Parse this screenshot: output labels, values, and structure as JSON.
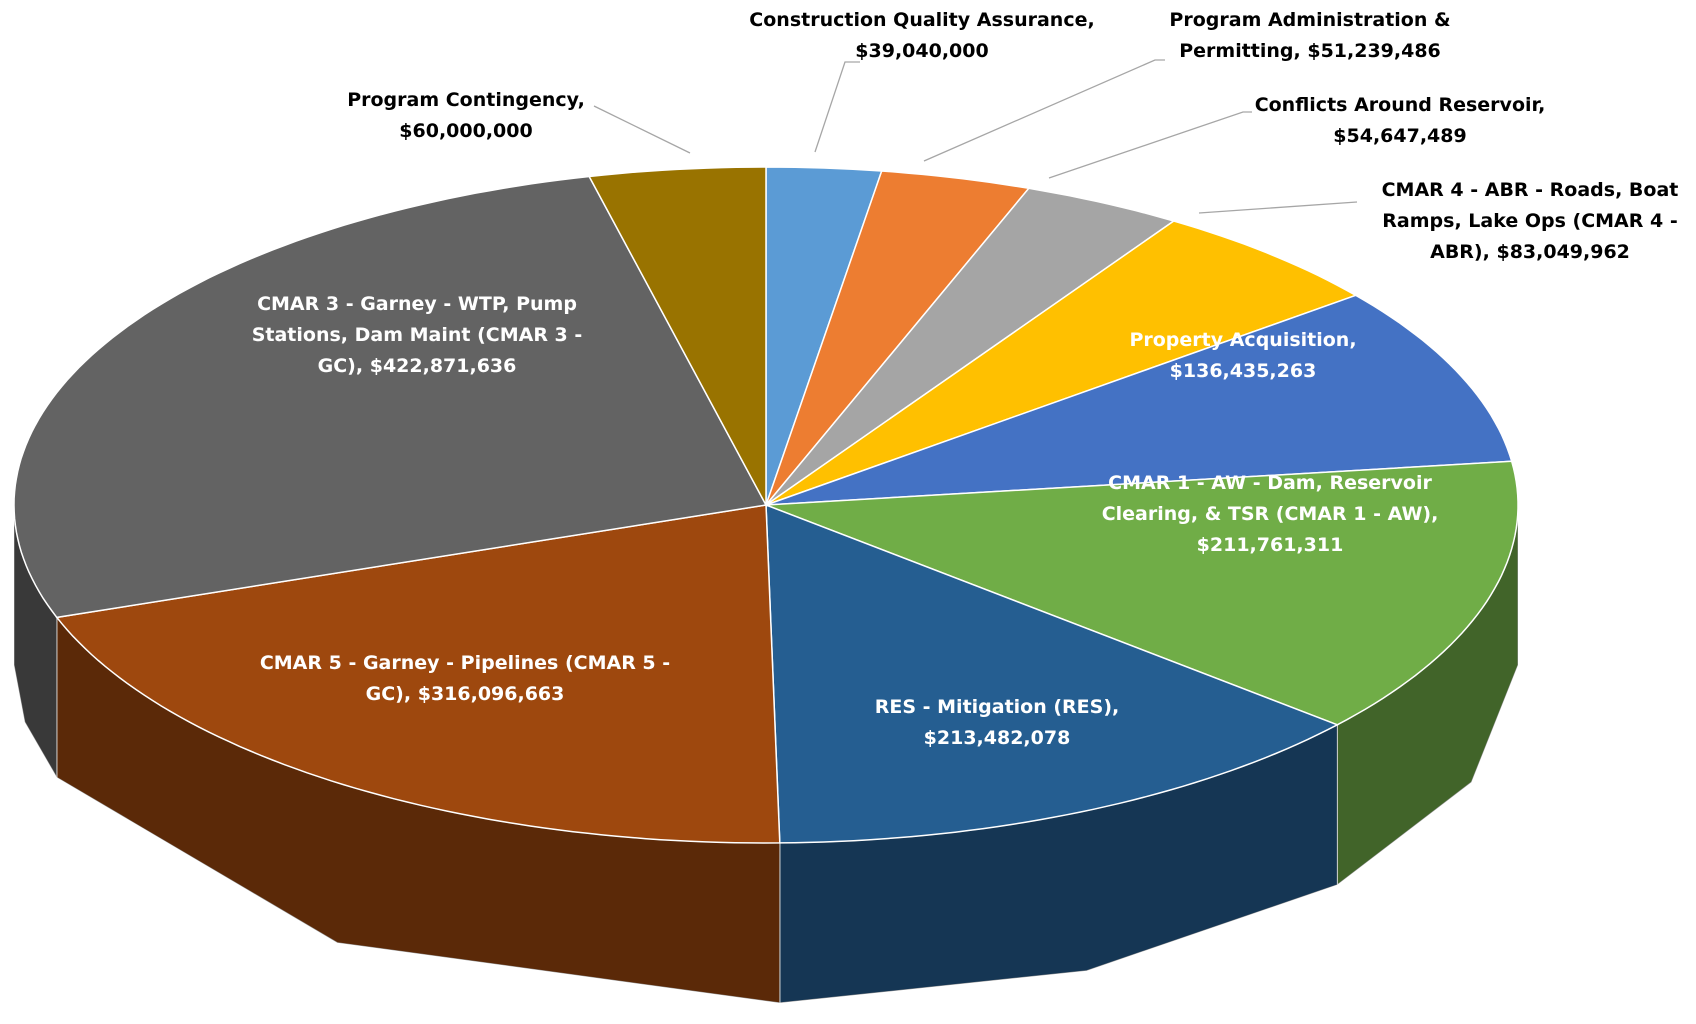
{
  "chart_data": {
    "type": "pie3d",
    "categories": [
      "Construction Quality Assurance",
      "Program Administration & Permitting",
      "Conflicts Around Reservoir",
      "CMAR 4 - ABR - Roads, Boat Ramps, Lake Ops (CMAR 4 - ABR)",
      "Property Acquisition",
      "CMAR 1 - AW - Dam, Reservoir Clearing, & TSR (CMAR 1 - AW)",
      "RES - Mitigation (RES)",
      "CMAR 5 - Garney - Pipelines (CMAR 5 - GC)",
      "CMAR 3 - Garney - WTP, Pump Stations, Dam Maint (CMAR 3 - GC)",
      "Program Contingency"
    ],
    "values": [
      39040000,
      51239486,
      54647489,
      83049962,
      136435263,
      211761311,
      213482078,
      316096663,
      422871636,
      60000000
    ],
    "value_labels": [
      "$39,040,000",
      "$51,239,486",
      "$54,647,489",
      "$83,049,962",
      "$136,435,263",
      "$211,761,311",
      "$213,482,078",
      "$316,096,663",
      "$422,871,636",
      "$60,000,000"
    ],
    "label_separator": ",",
    "colors": [
      "#5b9bd5",
      "#ed7d31",
      "#a5a5a5",
      "#ffc000",
      "#4472c4",
      "#70ad47",
      "#255e91",
      "#9e480e",
      "#636363",
      "#997300"
    ]
  }
}
